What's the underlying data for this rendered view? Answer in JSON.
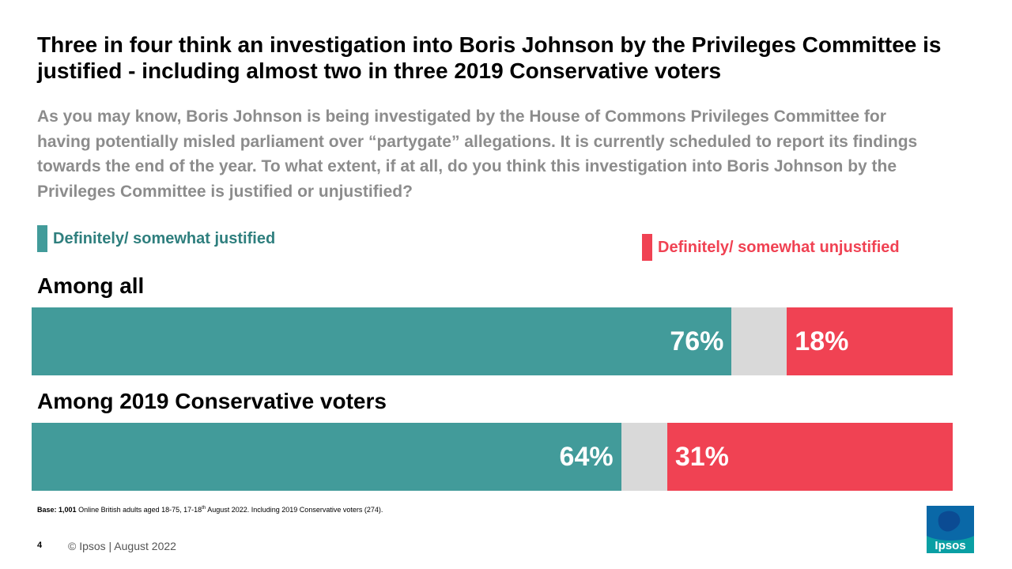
{
  "title": "Three in four think an investigation into Boris Johnson by the Privileges Committee is justified - including almost two in three 2019 Conservative voters",
  "question": "As you may know, Boris Johnson is being investigated by the House of Commons Privileges Committee for having potentially misled parliament over “partygate” allegations. It is currently scheduled to report its findings towards the end of the year. To what extent, if at all, do you think this investigation into Boris Johnson by the Privileges Committee is justified or unjustified?",
  "colors": {
    "justified": "#429b9a",
    "unjustified": "#f04253",
    "neither": "#d9d9d9"
  },
  "chart_data": {
    "type": "bar",
    "orientation": "horizontal-stacked",
    "legend_placement": "top",
    "legend": {
      "justified": "Definitely/ somewhat justified",
      "unjustified": "Definitely/ somewhat unjustified"
    },
    "categories": [
      "Among all",
      "Among 2019 Conservative voters"
    ],
    "series": [
      {
        "name": "Definitely/ somewhat justified",
        "values": [
          76,
          64
        ],
        "labels": [
          "76%",
          "64%"
        ]
      },
      {
        "name": "",
        "values": [
          6,
          5
        ],
        "labels": [
          "",
          ""
        ]
      },
      {
        "name": "Definitely/ somewhat unjustified",
        "values": [
          18,
          31
        ],
        "labels": [
          "18%",
          "31%"
        ]
      }
    ],
    "xlim": [
      0,
      100
    ]
  },
  "footer": {
    "base_label": "Base:",
    "base_count": "1,001",
    "base_text_1": "Online British adults aged 18-75, 17-18",
    "base_sup": "th",
    "base_text_2": "August 2022. Including 2019 Conservative voters (274).",
    "page_number": "4",
    "copyright": "© Ipsos | August 2022",
    "logo_text": "Ipsos"
  }
}
